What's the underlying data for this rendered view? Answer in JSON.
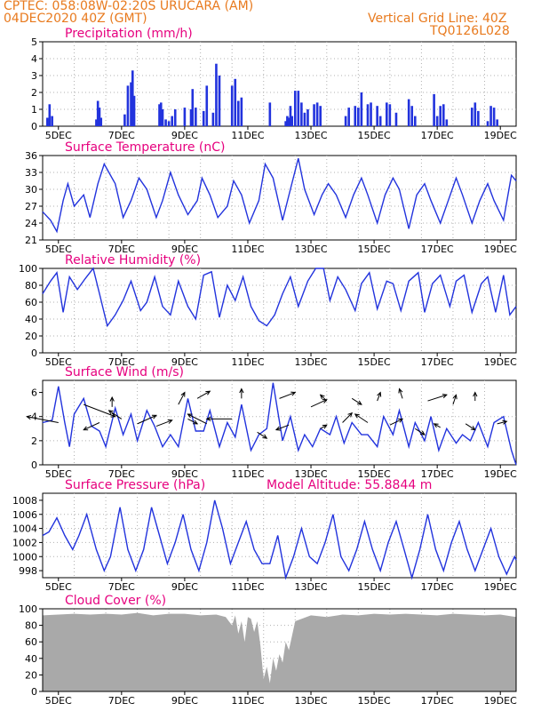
{
  "header": {
    "line1_left": "CPTEC:   058:08W-02:20S   URUCARA (AM)",
    "line2_left": "04DEC2020 40Z (GMT)",
    "line2_right": "Vertical Grid Line: 40Z",
    "line3_right": "TQ0126L028"
  },
  "colors": {
    "header": "#e87a1e",
    "title": "#e6007e",
    "series": "#2233dd",
    "cloud": "#a9a9a9",
    "grid": "#b0b0b0"
  },
  "x_axis": {
    "ticks": [
      "5DEC",
      "7DEC",
      "9DEC",
      "11DEC",
      "13DEC",
      "15DEC",
      "17DEC",
      "19DEC"
    ]
  },
  "chart_data": [
    {
      "type": "bar",
      "title": "Precipitation (mm/h)",
      "ylim": [
        0,
        5
      ],
      "yticks": [
        "0",
        "1",
        "2",
        "3",
        "4",
        "5"
      ],
      "x": [
        0.15,
        0.22,
        0.3,
        1.7,
        1.75,
        1.8,
        1.85,
        2.6,
        2.7,
        2.8,
        2.85,
        2.9,
        3.7,
        3.75,
        3.8,
        3.9,
        4.0,
        4.1,
        4.2,
        4.5,
        4.7,
        4.75,
        4.85,
        5.1,
        5.2,
        5.4,
        5.5,
        5.6,
        6.0,
        6.1,
        6.2,
        6.3,
        7.2,
        7.7,
        7.75,
        7.8,
        7.85,
        7.9,
        8.0,
        8.1,
        8.2,
        8.3,
        8.4,
        8.6,
        8.7,
        8.8,
        9.6,
        9.7,
        9.9,
        10.0,
        10.1,
        10.3,
        10.4,
        10.6,
        10.7,
        10.9,
        11.0,
        11.2,
        11.6,
        11.7,
        11.8,
        12.4,
        12.5,
        12.6,
        12.7,
        12.8,
        13.6,
        13.7,
        13.8,
        14.1,
        14.2,
        14.3,
        14.4
      ],
      "values": [
        0.5,
        1.3,
        0.6,
        0.4,
        1.5,
        1.1,
        0.5,
        0.7,
        2.4,
        2.6,
        3.3,
        1.8,
        1.3,
        1.4,
        1.0,
        0.4,
        0.3,
        0.6,
        1.0,
        1.1,
        1.0,
        2.2,
        1.1,
        0.9,
        2.4,
        0.8,
        3.7,
        3.0,
        2.4,
        2.8,
        1.5,
        1.7,
        1.4,
        0.3,
        0.6,
        0.5,
        1.2,
        0.6,
        2.1,
        2.1,
        1.4,
        0.8,
        1.0,
        1.3,
        1.4,
        1.2,
        0.6,
        1.1,
        1.2,
        1.1,
        2.0,
        1.3,
        1.4,
        1.2,
        0.6,
        1.4,
        1.3,
        0.8,
        1.6,
        1.2,
        0.6,
        1.9,
        0.6,
        1.2,
        1.3,
        0.4,
        1.1,
        1.4,
        0.9,
        0.3,
        1.2,
        1.1,
        0.4
      ]
    },
    {
      "type": "line",
      "title": "Surface Temperature (nC)",
      "ylim": [
        21,
        36
      ],
      "yticks": [
        "21",
        "24",
        "27",
        "30",
        "33",
        "36"
      ],
      "x": [
        0,
        0.25,
        0.45,
        0.65,
        0.8,
        1.0,
        1.3,
        1.5,
        1.75,
        1.95,
        2.3,
        2.55,
        2.8,
        3.05,
        3.3,
        3.6,
        3.8,
        4.05,
        4.3,
        4.6,
        4.9,
        5.05,
        5.3,
        5.55,
        5.85,
        6.05,
        6.3,
        6.55,
        6.85,
        7.05,
        7.3,
        7.6,
        7.85,
        8.1,
        8.3,
        8.6,
        8.85,
        9.05,
        9.3,
        9.6,
        9.85,
        10.1,
        10.3,
        10.6,
        10.85,
        11.1,
        11.3,
        11.6,
        11.85,
        12.1,
        12.3,
        12.6,
        12.85,
        13.1,
        13.3,
        13.6,
        13.85,
        14.1,
        14.3,
        14.6,
        14.85,
        15.0
      ],
      "values": [
        26,
        24.5,
        22.5,
        28,
        31,
        27,
        29,
        25,
        31,
        34.5,
        31,
        25,
        28,
        32,
        30,
        25,
        28,
        33,
        29,
        25.5,
        28,
        32,
        29,
        25,
        27,
        31.5,
        29,
        24,
        28,
        34.5,
        32,
        24.5,
        30,
        35.5,
        30,
        25.5,
        29,
        31,
        29,
        25,
        29,
        32,
        29,
        24,
        29,
        32,
        30,
        23,
        29,
        31,
        28,
        24,
        28,
        32,
        29,
        24,
        28,
        31,
        28,
        24.5,
        32.5,
        31.5
      ]
    },
    {
      "type": "line",
      "title": "Relative Humidity (%)",
      "ylim": [
        0,
        100
      ],
      "yticks": [
        "0",
        "20",
        "40",
        "60",
        "80",
        "100"
      ],
      "x": [
        0,
        0.25,
        0.45,
        0.65,
        0.85,
        1.1,
        1.35,
        1.6,
        1.8,
        2.05,
        2.3,
        2.55,
        2.8,
        3.1,
        3.3,
        3.55,
        3.8,
        4.05,
        4.3,
        4.6,
        4.85,
        5.1,
        5.35,
        5.6,
        5.85,
        6.1,
        6.35,
        6.6,
        6.85,
        7.1,
        7.35,
        7.6,
        7.85,
        8.1,
        8.4,
        8.65,
        8.9,
        9.1,
        9.35,
        9.6,
        9.9,
        10.1,
        10.35,
        10.6,
        10.9,
        11.1,
        11.35,
        11.6,
        11.9,
        12.1,
        12.35,
        12.6,
        12.9,
        13.1,
        13.35,
        13.6,
        13.9,
        14.1,
        14.35,
        14.6,
        14.8,
        15.0
      ],
      "values": [
        70,
        85,
        95,
        48,
        90,
        75,
        88,
        100,
        70,
        32,
        45,
        62,
        85,
        50,
        60,
        90,
        55,
        45,
        85,
        55,
        40,
        92,
        96,
        42,
        80,
        62,
        90,
        55,
        38,
        32,
        45,
        70,
        90,
        55,
        85,
        100,
        100,
        62,
        90,
        75,
        50,
        82,
        95,
        52,
        85,
        82,
        50,
        85,
        95,
        48,
        82,
        92,
        55,
        85,
        92,
        48,
        82,
        90,
        48,
        92,
        45,
        55
      ]
    },
    {
      "type": "line",
      "title": "Surface Wind (m/s)",
      "ylim": [
        0,
        7
      ],
      "yticks": [
        "0",
        "2",
        "4",
        "6"
      ],
      "x": [
        0,
        0.3,
        0.5,
        0.7,
        0.85,
        1.0,
        1.3,
        1.55,
        1.8,
        2.0,
        2.3,
        2.55,
        2.8,
        3.0,
        3.3,
        3.55,
        3.8,
        4.05,
        4.3,
        4.6,
        4.85,
        5.1,
        5.3,
        5.6,
        5.85,
        6.1,
        6.3,
        6.6,
        6.85,
        7.1,
        7.3,
        7.6,
        7.85,
        8.1,
        8.3,
        8.55,
        8.8,
        9.1,
        9.3,
        9.55,
        9.8,
        10.1,
        10.3,
        10.6,
        10.8,
        11.1,
        11.3,
        11.6,
        11.8,
        12.1,
        12.3,
        12.55,
        12.8,
        13.1,
        13.3,
        13.55,
        13.8,
        14.1,
        14.3,
        14.6,
        14.85,
        15.0
      ],
      "values": [
        3.5,
        3.7,
        6.5,
        3.5,
        1.5,
        4.2,
        5.5,
        3.2,
        2.8,
        1.5,
        4.7,
        2.5,
        4.2,
        2.0,
        4.5,
        3.2,
        1.5,
        2.5,
        1.5,
        5.5,
        2.8,
        2.8,
        4.5,
        1.5,
        3.5,
        2.3,
        5.0,
        1.2,
        2.5,
        3.0,
        6.8,
        2.0,
        4.0,
        1.2,
        2.5,
        1.5,
        3.0,
        2.5,
        4.0,
        1.8,
        3.5,
        2.5,
        2.5,
        1.5,
        4.0,
        2.5,
        4.5,
        1.5,
        3.5,
        2.0,
        4.0,
        1.2,
        3.0,
        1.8,
        2.5,
        2.0,
        3.5,
        1.5,
        3.5,
        4.0,
        1.2,
        0.0
      ],
      "arrows": {
        "x": [
          0.5,
          1.3,
          1.8,
          2.2,
          2.5,
          3.0,
          3.6,
          4.3,
          4.6,
          4.9,
          5.2,
          6.0,
          6.3,
          6.8,
          7.5,
          7.8,
          8.5,
          8.8,
          9.0,
          9.5,
          9.8,
          10.3,
          10.6,
          11.0,
          11.4,
          11.8,
          12.2,
          12.6,
          13.0,
          13.4,
          13.7,
          14.4
        ],
        "y": [
          3.5,
          5.0,
          3.5,
          4.8,
          3.8,
          3.4,
          3.2,
          5.0,
          3.8,
          5.5,
          3.4,
          3.8,
          5.5,
          2.7,
          5.5,
          3.3,
          4.8,
          3.0,
          5.3,
          3.5,
          5.5,
          3.5,
          5.3,
          3.3,
          5.5,
          3.0,
          5.3,
          3.1,
          5.0,
          3.4,
          5.3,
          3.4
        ],
        "dx": [
          -1.0,
          1.0,
          -0.5,
          0.0,
          -0.4,
          0.6,
          0.5,
          0.2,
          0.3,
          0.4,
          -0.6,
          -0.8,
          0.0,
          0.3,
          0.5,
          -0.4,
          0.5,
          0.2,
          -0.2,
          0.3,
          0.3,
          -0.4,
          0.1,
          0.4,
          -0.1,
          0.3,
          0.6,
          -0.2,
          0.1,
          0.3,
          0.0,
          0.3
        ],
        "dy": [
          0.5,
          -1.0,
          -0.6,
          0.8,
          0.7,
          0.7,
          0.5,
          1.0,
          -0.4,
          0.6,
          0.8,
          0.0,
          0.8,
          -0.5,
          0.5,
          -0.4,
          0.6,
          0.3,
          0.5,
          0.8,
          -0.5,
          0.7,
          0.7,
          0.5,
          0.8,
          -0.5,
          0.5,
          0.3,
          0.8,
          -0.5,
          0.7,
          0.2
        ]
      }
    },
    {
      "type": "line",
      "title": "Surface Pressure (hPa)",
      "annotation": "Model Altitude: 55.8844 m",
      "ylim": [
        997,
        1009
      ],
      "yticks": [
        "998",
        "1000",
        "1002",
        "1004",
        "1006",
        "1008"
      ],
      "x": [
        0,
        0.2,
        0.45,
        0.7,
        0.95,
        1.15,
        1.4,
        1.7,
        1.95,
        2.15,
        2.45,
        2.7,
        2.95,
        3.2,
        3.45,
        3.7,
        3.95,
        4.2,
        4.45,
        4.7,
        4.95,
        5.2,
        5.45,
        5.7,
        5.95,
        6.2,
        6.45,
        6.7,
        6.95,
        7.2,
        7.45,
        7.7,
        7.95,
        8.2,
        8.45,
        8.7,
        8.95,
        9.2,
        9.45,
        9.7,
        9.95,
        10.2,
        10.45,
        10.7,
        10.95,
        11.2,
        11.45,
        11.7,
        11.95,
        12.2,
        12.45,
        12.7,
        12.95,
        13.2,
        13.45,
        13.7,
        13.95,
        14.2,
        14.45,
        14.7,
        14.95,
        15.0
      ],
      "values": [
        1003,
        1003.5,
        1005.5,
        1003,
        1001,
        1003,
        1006,
        1001,
        998,
        1000,
        1007,
        1001,
        998,
        1001,
        1007,
        1003,
        999,
        1002,
        1006,
        1001,
        998,
        1002,
        1008,
        1004,
        999,
        1002,
        1005,
        1001,
        999,
        999,
        1003,
        997,
        1000,
        1004,
        1000,
        999,
        1002,
        1006,
        1000,
        998,
        1001,
        1005,
        1001,
        998,
        1002,
        1005,
        1001,
        997,
        1001,
        1006,
        1001,
        998,
        1002,
        1005,
        1001,
        998,
        1001,
        1004,
        1000,
        997.5,
        1000,
        999.5
      ]
    },
    {
      "type": "area",
      "title": "Cloud Cover (%)",
      "ylim": [
        0,
        100
      ],
      "yticks": [
        "0",
        "20",
        "40",
        "60",
        "80",
        "100"
      ],
      "x": [
        0,
        0.5,
        1.0,
        1.5,
        2.0,
        2.5,
        3.0,
        3.5,
        4.0,
        4.5,
        5.0,
        5.5,
        5.8,
        5.9,
        6.0,
        6.1,
        6.2,
        6.3,
        6.4,
        6.5,
        6.6,
        6.7,
        6.8,
        6.9,
        7.0,
        7.1,
        7.2,
        7.3,
        7.4,
        7.5,
        7.6,
        7.7,
        7.8,
        8.0,
        8.5,
        9.0,
        9.5,
        10.0,
        10.5,
        11.0,
        11.5,
        12.0,
        12.5,
        13.0,
        13.5,
        14.0,
        14.5,
        15.0
      ],
      "values": [
        92,
        93,
        94,
        93,
        94,
        93,
        95,
        92,
        94,
        94,
        92,
        93,
        90,
        85,
        80,
        92,
        70,
        85,
        60,
        90,
        88,
        72,
        85,
        55,
        15,
        30,
        10,
        40,
        25,
        45,
        35,
        60,
        50,
        85,
        92,
        90,
        93,
        92,
        94,
        93,
        94,
        93,
        92,
        94,
        93,
        92,
        93,
        90
      ]
    }
  ]
}
